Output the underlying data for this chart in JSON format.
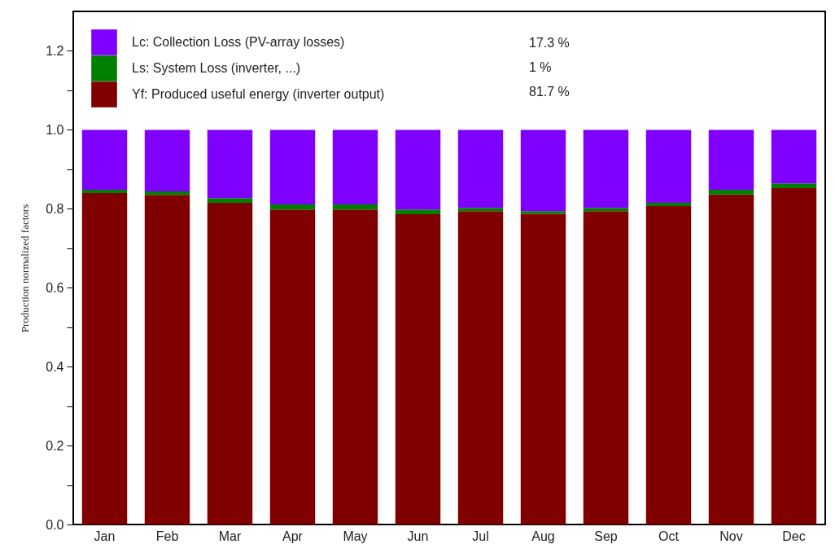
{
  "chart_data": {
    "type": "bar",
    "stacked": true,
    "ylabel": "Production normalized factors",
    "categories": [
      "Jan",
      "Feb",
      "Mar",
      "Apr",
      "May",
      "Jun",
      "Jul",
      "Aug",
      "Sep",
      "Oct",
      "Nov",
      "Dec"
    ],
    "series": [
      {
        "name": "Yf: Produced useful energy  (inverter output)",
        "color": "#800000",
        "values": [
          0.84,
          0.835,
          0.815,
          0.798,
          0.798,
          0.786,
          0.794,
          0.787,
          0.794,
          0.807,
          0.836,
          0.852
        ]
      },
      {
        "name": "Ls: System Loss  (inverter, ...)",
        "color": "#008000",
        "values": [
          0.008,
          0.009,
          0.012,
          0.013,
          0.013,
          0.012,
          0.008,
          0.007,
          0.008,
          0.008,
          0.012,
          0.012
        ]
      },
      {
        "name": "Lc: Collection Loss (PV-array losses)",
        "color": "#8000ff",
        "values": [
          0.152,
          0.156,
          0.173,
          0.189,
          0.189,
          0.202,
          0.198,
          0.206,
          0.198,
          0.185,
          0.152,
          0.136
        ]
      }
    ],
    "ylim": [
      0,
      1.3
    ],
    "yticks": [
      {
        "value": 0,
        "label": "0.0"
      },
      {
        "value": 0.1,
        "label": null
      },
      0.2,
      {
        "value": 0.3,
        "label": null
      },
      0.4,
      {
        "value": 0.5,
        "label": null
      },
      0.6,
      {
        "value": 0.7,
        "label": null
      },
      0.8,
      {
        "value": 0.9,
        "label": null
      },
      {
        "value": 1,
        "label": "1.0"
      },
      {
        "value": 1.1,
        "label": null
      },
      1.2
    ],
    "legend": "top left",
    "grid": false,
    "annotations": [
      "17.3 %",
      "1 %",
      "81.7 %"
    ]
  }
}
